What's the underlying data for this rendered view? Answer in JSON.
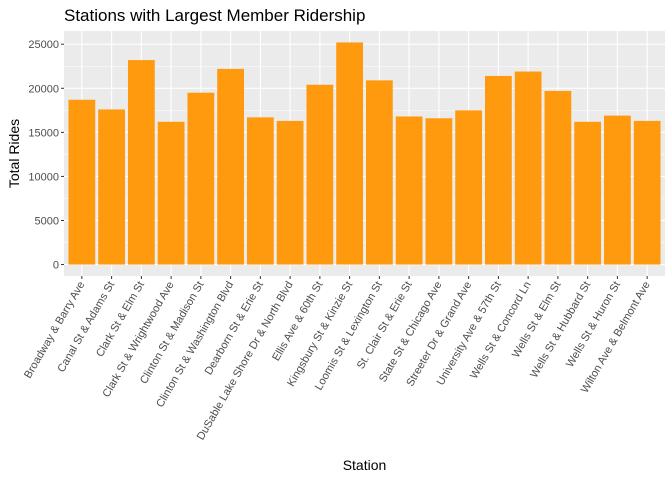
{
  "chart_data": {
    "type": "bar",
    "title": "Stations with Largest Member Ridership",
    "xlabel": "Station",
    "ylabel": "Total Rides",
    "categories": [
      "Broadway & Barry Ave",
      "Canal St & Adams St",
      "Clark St & Elm St",
      "Clark St & Wrightwood Ave",
      "Clinton St & Madison St",
      "Clinton St & Washington Blvd",
      "Dearborn St & Erie St",
      "DuSable Lake Shore Dr & North Blvd",
      "Ellis Ave & 60th St",
      "Kingsbury St & Kinzie St",
      "Loomis St & Lexington St",
      "St. Clair St & Erie St",
      "State St & Chicago Ave",
      "Streeter Dr & Grand Ave",
      "University Ave & 57th St",
      "Wells St & Concord Ln",
      "Wells St & Elm St",
      "Wells St & Hubbard St",
      "Wells St & Huron St",
      "Wilton Ave & Belmont Ave"
    ],
    "values": [
      18700,
      17600,
      23200,
      16200,
      19500,
      22200,
      16700,
      16300,
      20400,
      25200,
      20900,
      16800,
      16600,
      17500,
      21400,
      21900,
      19700,
      16200,
      16900,
      16300
    ],
    "yticks": [
      0,
      5000,
      10000,
      15000,
      20000,
      25000
    ],
    "ylim": [
      -1300,
      26500
    ],
    "grid": true,
    "colors": {
      "bar": "#ff9a0e",
      "panel": "#ebebeb",
      "grid_major": "#ffffff",
      "text": "#000000",
      "tick": "#4d4d4d"
    }
  }
}
